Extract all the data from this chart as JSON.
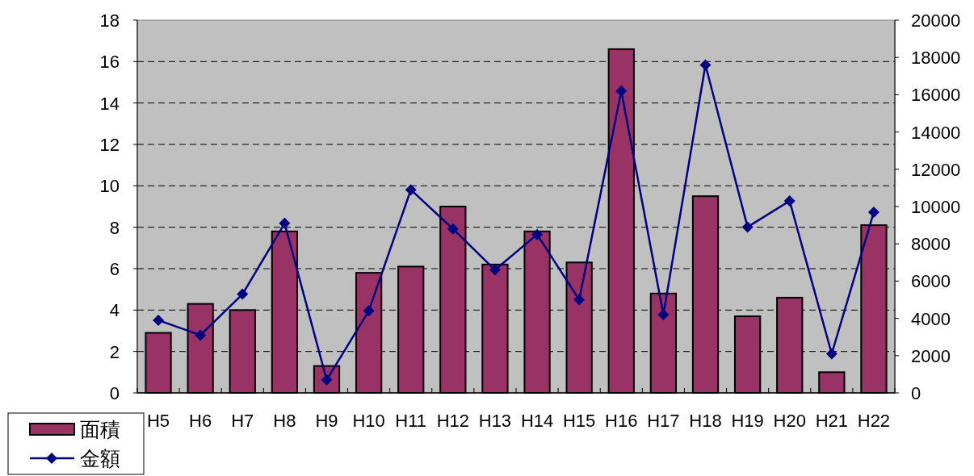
{
  "chart_data": {
    "type": "bar",
    "categories": [
      "H5",
      "H6",
      "H7",
      "H8",
      "H9",
      "H10",
      "H11",
      "H12",
      "H13",
      "H14",
      "H15",
      "H16",
      "H17",
      "H18",
      "H19",
      "H20",
      "H21",
      "H22"
    ],
    "series": [
      {
        "name": "面積",
        "color": "#993366",
        "values": [
          2.9,
          4.3,
          4.0,
          7.8,
          1.3,
          5.8,
          6.1,
          9.0,
          6.2,
          7.8,
          6.3,
          16.6,
          4.8,
          9.5,
          3.7,
          4.6,
          1.0,
          8.1
        ]
      },
      {
        "name": "金額",
        "type": "line",
        "axis": "y2",
        "color": "#000080",
        "marker": "diamond",
        "values": [
          3900,
          3100,
          5300,
          9100,
          700,
          4400,
          10900,
          8800,
          6600,
          8500,
          5000,
          16200,
          4200,
          17600,
          8900,
          10300,
          2100,
          9700
        ]
      }
    ],
    "ylim": [
      0,
      18
    ],
    "yticks": [
      0,
      2,
      4,
      6,
      8,
      10,
      12,
      14,
      16,
      18
    ],
    "y2lim": [
      0,
      20000
    ],
    "y2ticks": [
      0,
      2000,
      4000,
      6000,
      8000,
      10000,
      12000,
      14000,
      16000,
      18000,
      20000
    ],
    "grid": "y",
    "legend": "bottom left"
  }
}
